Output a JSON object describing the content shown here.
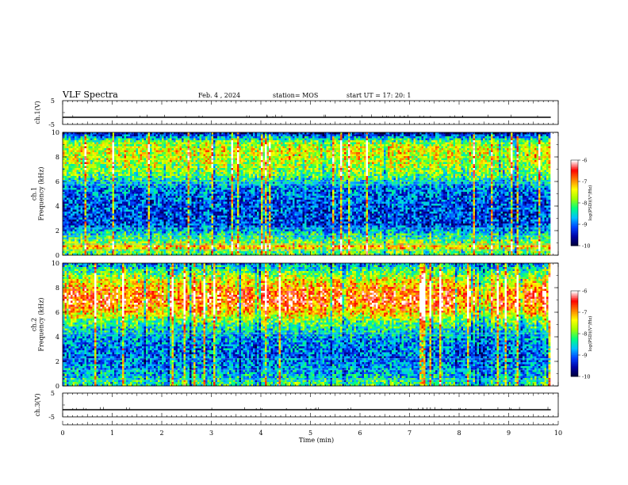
{
  "header": {
    "title": "VLF Spectra",
    "date": "Feb. 4 , 2024",
    "station": "station= MOS",
    "start": "start  UT  =   17: 20: 1"
  },
  "chart_data": [
    {
      "type": "line",
      "name": "ch1-voltage",
      "ylabel": "ch.1(V)",
      "ylim": [
        -5,
        5
      ],
      "yticks": [
        "5",
        "-5"
      ],
      "x": [
        0,
        9.85
      ],
      "values": [
        -2,
        -2
      ]
    },
    {
      "type": "heatmap",
      "name": "ch1-spectrogram",
      "ylabel": "ch.1\nFrequency (kHz)",
      "xlim": [
        0,
        10
      ],
      "ylim": [
        0,
        10
      ],
      "yticks": [
        "0",
        "2",
        "4",
        "6",
        "8",
        "10"
      ],
      "data_xmax": 9.85,
      "band_profile": [
        {
          "f": 0.3,
          "level": 0.5
        },
        {
          "f": 0.7,
          "level": 0.75
        },
        {
          "f": 1.0,
          "level": 0.55
        },
        {
          "f": 1.5,
          "level": 0.45
        },
        {
          "f": 2.5,
          "level": 0.2
        },
        {
          "f": 4.0,
          "level": 0.22
        },
        {
          "f": 5.5,
          "level": 0.28
        },
        {
          "f": 6.5,
          "level": 0.5
        },
        {
          "f": 7.5,
          "level": 0.6
        },
        {
          "f": 8.5,
          "level": 0.65
        },
        {
          "f": 9.2,
          "level": 0.55
        },
        {
          "f": 9.7,
          "level": 0.25
        },
        {
          "f": 10.0,
          "level": 0.1
        }
      ],
      "line_freqs_khz": [
        0.4,
        0.9,
        1.3,
        1.6,
        2.2,
        5.8,
        6.0
      ],
      "colorbar": {
        "label": "log(PSD)(V²/Hz)",
        "ticks": [
          "-6",
          "-7",
          "-8",
          "-9",
          "-10"
        ],
        "range": [
          -10,
          -6
        ]
      }
    },
    {
      "type": "heatmap",
      "name": "ch2-spectrogram",
      "ylabel": "ch.2\nFrequency (kHz)",
      "xlim": [
        0,
        10
      ],
      "ylim": [
        0,
        10
      ],
      "yticks": [
        "0",
        "2",
        "4",
        "6",
        "8",
        "10"
      ],
      "data_xmax": 9.85,
      "band_profile": [
        {
          "f": 0.3,
          "level": 0.45
        },
        {
          "f": 0.8,
          "level": 0.35
        },
        {
          "f": 1.5,
          "level": 0.3
        },
        {
          "f": 2.5,
          "level": 0.25
        },
        {
          "f": 3.8,
          "level": 0.3
        },
        {
          "f": 5.0,
          "level": 0.45
        },
        {
          "f": 6.0,
          "level": 0.7
        },
        {
          "f": 6.8,
          "level": 0.85
        },
        {
          "f": 7.5,
          "level": 0.82
        },
        {
          "f": 8.3,
          "level": 0.7
        },
        {
          "f": 9.0,
          "level": 0.55
        },
        {
          "f": 9.6,
          "level": 0.4
        },
        {
          "f": 10.0,
          "level": 0.3
        }
      ],
      "line_freqs_khz": [
        0.5,
        1.3,
        2.2,
        4.3
      ],
      "colorbar": {
        "label": "log(PSD)(V²/Hz)",
        "ticks": [
          "-6",
          "-7",
          "-8",
          "-9",
          "-10"
        ],
        "range": [
          -10,
          -6
        ]
      }
    },
    {
      "type": "line",
      "name": "ch3-voltage",
      "ylabel": "ch.3(V)",
      "ylim": [
        -5,
        5
      ],
      "yticks": [
        "5",
        "-5"
      ],
      "x": [
        0,
        9.85
      ],
      "values": [
        -2,
        -2
      ]
    }
  ],
  "xaxis": {
    "label": "Time  (min)",
    "lim": [
      0,
      10
    ],
    "ticks": [
      "0",
      "1",
      "2",
      "3",
      "4",
      "5",
      "6",
      "7",
      "8",
      "9",
      "10"
    ]
  },
  "colors": {
    "colormap": [
      "#000033",
      "#0000a0",
      "#0040ff",
      "#00c0ff",
      "#00ff80",
      "#a0ff00",
      "#ffff00",
      "#ff8000",
      "#ff0000",
      "#ffffff"
    ]
  }
}
